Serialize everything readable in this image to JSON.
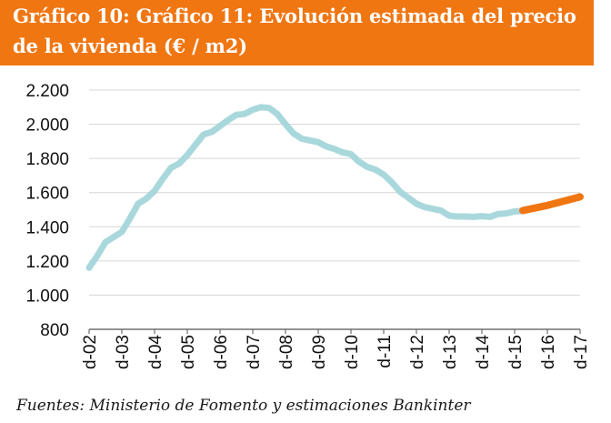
{
  "header": {
    "line1": "Gráfico 10: Gráfico 11:  Evolución estimada del precio",
    "line2": "de la vivienda (€ / m2)"
  },
  "source": "Fuentes:  Ministerio de Fomento y estimaciones Bankinter",
  "chart_data": {
    "type": "line",
    "title": "",
    "xlabel": "",
    "ylabel": "",
    "ylim": [
      800,
      2200
    ],
    "y_ticks": [
      800,
      1000,
      1200,
      1400,
      1600,
      1800,
      2000,
      2200
    ],
    "y_tick_labels": [
      "800",
      "1.000",
      "1.200",
      "1.400",
      "1.600",
      "1.800",
      "2.000",
      "2.200"
    ],
    "x_tick_labels": [
      "d-02",
      "d-03",
      "d-04",
      "d-05",
      "d-06",
      "d-07",
      "d-08",
      "d-09",
      "d-10",
      "d-11",
      "d-12",
      "d-13",
      "d-14",
      "d-15",
      "d-16",
      "d-17"
    ],
    "grid": true,
    "series": [
      {
        "color": "#a9d8dc",
        "x": [
          2002.0,
          2002.25,
          2002.5,
          2002.75,
          2003.0,
          2003.25,
          2003.5,
          2003.75,
          2004.0,
          2004.25,
          2004.5,
          2004.75,
          2005.0,
          2005.25,
          2005.5,
          2005.75,
          2006.0,
          2006.25,
          2006.5,
          2006.75,
          2007.0,
          2007.25,
          2007.5,
          2007.75,
          2008.0,
          2008.25,
          2008.5,
          2008.75,
          2009.0,
          2009.25,
          2009.5,
          2009.75,
          2010.0,
          2010.25,
          2010.5,
          2010.75,
          2011.0,
          2011.25,
          2011.5,
          2011.75,
          2012.0,
          2012.25,
          2012.5,
          2012.75,
          2013.0,
          2013.25,
          2013.5,
          2013.75,
          2014.0,
          2014.25,
          2014.5,
          2014.75,
          2015.0,
          2015.25
        ],
        "values": [
          1160,
          1230,
          1310,
          1340,
          1370,
          1450,
          1535,
          1565,
          1610,
          1680,
          1745,
          1770,
          1820,
          1880,
          1940,
          1955,
          1990,
          2025,
          2055,
          2060,
          2085,
          2100,
          2095,
          2060,
          2000,
          1945,
          1915,
          1905,
          1895,
          1870,
          1855,
          1835,
          1825,
          1780,
          1750,
          1735,
          1705,
          1660,
          1605,
          1570,
          1535,
          1515,
          1505,
          1495,
          1465,
          1460,
          1460,
          1458,
          1462,
          1458,
          1475,
          1478,
          1490,
          1492
        ]
      },
      {
        "color": "#f07612",
        "x": [
          2015.25,
          2016.0,
          2016.5,
          2017.0
        ],
        "values": [
          1495,
          1525,
          1550,
          1575
        ]
      }
    ]
  }
}
